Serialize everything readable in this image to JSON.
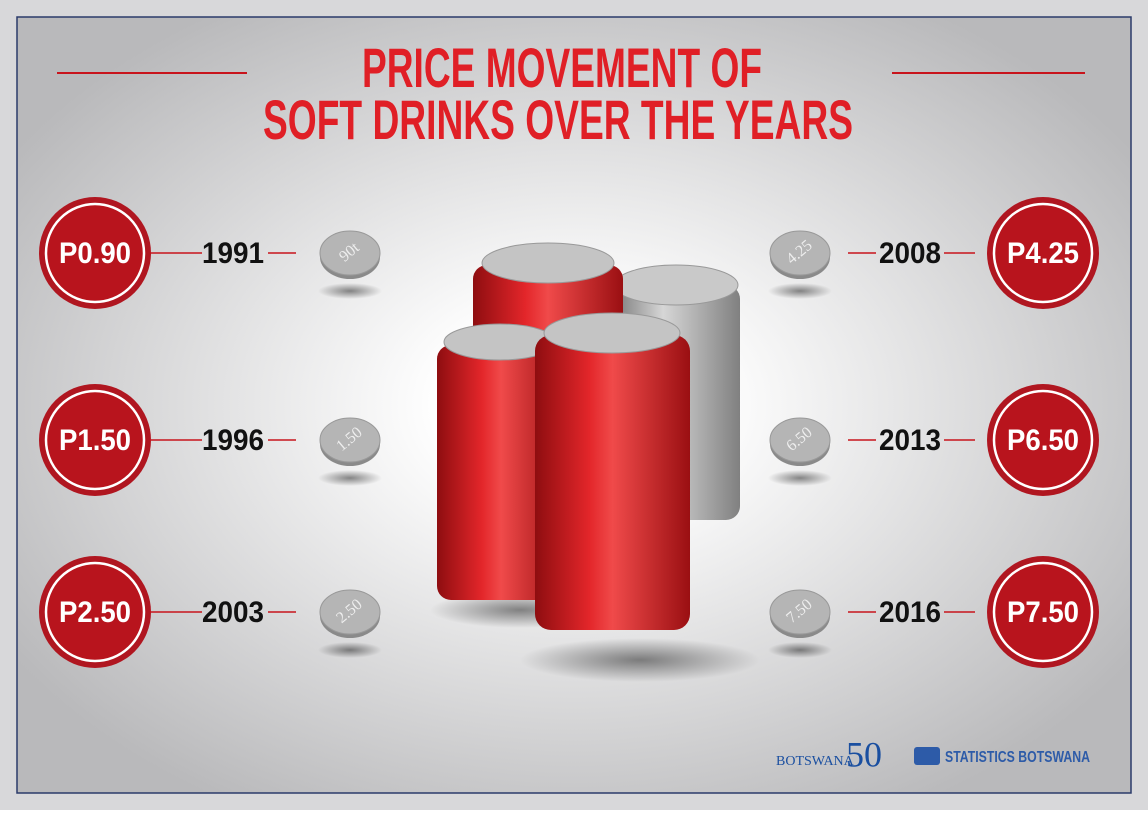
{
  "title": [
    "PRICE MOVEMENT OF",
    "SOFT DRINKS OVER THE YEARS"
  ],
  "entries": [
    {
      "price": "P0.90",
      "year": "1991",
      "coin": "90t"
    },
    {
      "price": "P1.50",
      "year": "1996",
      "coin": "1.50"
    },
    {
      "price": "P2.50",
      "year": "2003",
      "coin": "2.50"
    },
    {
      "price": "P4.25",
      "year": "2008",
      "coin": "4.25"
    },
    {
      "price": "P6.50",
      "year": "2013",
      "coin": "6.50"
    },
    {
      "price": "P7.50",
      "year": "2016",
      "coin": "7.50"
    }
  ],
  "footer": {
    "logo_a": "BOTSWANA",
    "logo_a_mark": "50",
    "logo_b": "STATISTICS BOTSWANA"
  }
}
